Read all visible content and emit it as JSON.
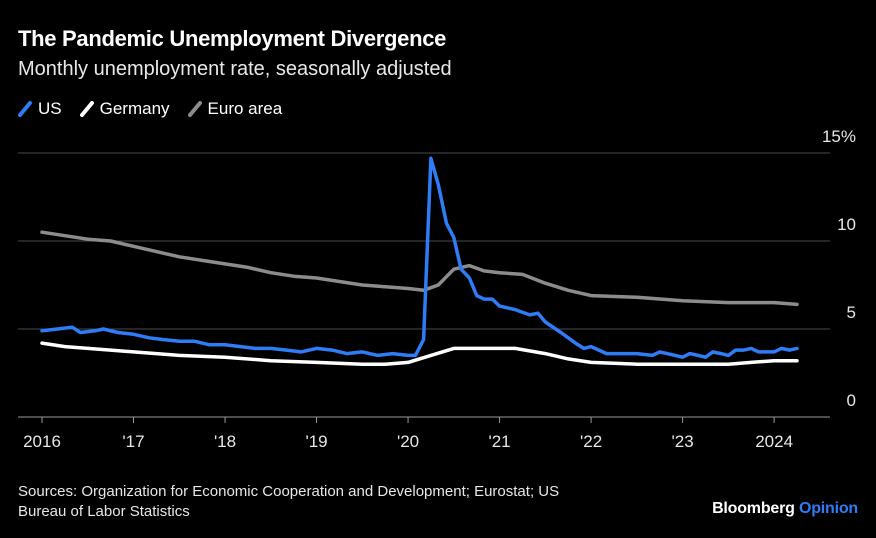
{
  "header": {
    "title": "The Pandemic Unemployment Divergence",
    "subtitle": "Monthly unemployment rate, seasonally adjusted"
  },
  "footer": {
    "source": "Sources: Organization for Economic Cooperation and Development; Eurostat; US Bureau of Labor Statistics",
    "brand_primary": "Bloomberg",
    "brand_secondary": "Opinion"
  },
  "chart_data": {
    "type": "line",
    "title": "The Pandemic Unemployment Divergence",
    "subtitle": "Monthly unemployment rate, seasonally adjusted",
    "xlabel": "",
    "ylabel": "",
    "xlim": [
      2016.0,
      2024.25
    ],
    "ylim": [
      0,
      15
    ],
    "grid": true,
    "legend_position": "top-left",
    "x_ticks": [
      {
        "value": 2016,
        "label": "2016"
      },
      {
        "value": 2017,
        "label": "'17"
      },
      {
        "value": 2018,
        "label": "'18"
      },
      {
        "value": 2019,
        "label": "'19"
      },
      {
        "value": 2020,
        "label": "'20"
      },
      {
        "value": 2021,
        "label": "'21"
      },
      {
        "value": 2022,
        "label": "'22"
      },
      {
        "value": 2023,
        "label": "'23"
      },
      {
        "value": 2024,
        "label": "2024"
      }
    ],
    "y_ticks": [
      {
        "value": 15,
        "label": "15%"
      },
      {
        "value": 10,
        "label": "10"
      },
      {
        "value": 5,
        "label": "5"
      },
      {
        "value": 0,
        "label": "0"
      }
    ],
    "series": [
      {
        "name": "US",
        "color": "#2e7cf6",
        "points": [
          [
            2016.0,
            4.9
          ],
          [
            2016.17,
            5.0
          ],
          [
            2016.33,
            5.1
          ],
          [
            2016.42,
            4.8
          ],
          [
            2016.58,
            4.9
          ],
          [
            2016.67,
            5.0
          ],
          [
            2016.83,
            4.8
          ],
          [
            2017.0,
            4.7
          ],
          [
            2017.17,
            4.5
          ],
          [
            2017.33,
            4.4
          ],
          [
            2017.5,
            4.3
          ],
          [
            2017.67,
            4.3
          ],
          [
            2017.83,
            4.1
          ],
          [
            2018.0,
            4.1
          ],
          [
            2018.17,
            4.0
          ],
          [
            2018.33,
            3.9
          ],
          [
            2018.5,
            3.9
          ],
          [
            2018.67,
            3.8
          ],
          [
            2018.83,
            3.7
          ],
          [
            2019.0,
            3.9
          ],
          [
            2019.17,
            3.8
          ],
          [
            2019.33,
            3.6
          ],
          [
            2019.5,
            3.7
          ],
          [
            2019.67,
            3.5
          ],
          [
            2019.83,
            3.6
          ],
          [
            2020.0,
            3.5
          ],
          [
            2020.08,
            3.5
          ],
          [
            2020.17,
            4.4
          ],
          [
            2020.25,
            14.7
          ],
          [
            2020.33,
            13.2
          ],
          [
            2020.42,
            11.0
          ],
          [
            2020.5,
            10.2
          ],
          [
            2020.58,
            8.4
          ],
          [
            2020.67,
            7.9
          ],
          [
            2020.75,
            6.9
          ],
          [
            2020.83,
            6.7
          ],
          [
            2020.92,
            6.7
          ],
          [
            2021.0,
            6.3
          ],
          [
            2021.17,
            6.1
          ],
          [
            2021.33,
            5.8
          ],
          [
            2021.42,
            5.9
          ],
          [
            2021.5,
            5.4
          ],
          [
            2021.67,
            4.8
          ],
          [
            2021.83,
            4.2
          ],
          [
            2021.92,
            3.9
          ],
          [
            2022.0,
            4.0
          ],
          [
            2022.17,
            3.6
          ],
          [
            2022.5,
            3.6
          ],
          [
            2022.67,
            3.5
          ],
          [
            2022.75,
            3.7
          ],
          [
            2022.83,
            3.6
          ],
          [
            2022.92,
            3.5
          ],
          [
            2023.0,
            3.4
          ],
          [
            2023.08,
            3.6
          ],
          [
            2023.17,
            3.5
          ],
          [
            2023.25,
            3.4
          ],
          [
            2023.33,
            3.7
          ],
          [
            2023.42,
            3.6
          ],
          [
            2023.5,
            3.5
          ],
          [
            2023.58,
            3.8
          ],
          [
            2023.67,
            3.8
          ],
          [
            2023.75,
            3.9
          ],
          [
            2023.83,
            3.7
          ],
          [
            2023.92,
            3.7
          ],
          [
            2024.0,
            3.7
          ],
          [
            2024.08,
            3.9
          ],
          [
            2024.17,
            3.8
          ],
          [
            2024.25,
            3.9
          ]
        ]
      },
      {
        "name": "Germany",
        "color": "#ffffff",
        "points": [
          [
            2016.0,
            4.2
          ],
          [
            2016.25,
            4.0
          ],
          [
            2016.5,
            3.9
          ],
          [
            2016.75,
            3.8
          ],
          [
            2017.0,
            3.7
          ],
          [
            2017.5,
            3.5
          ],
          [
            2018.0,
            3.4
          ],
          [
            2018.5,
            3.2
          ],
          [
            2019.0,
            3.1
          ],
          [
            2019.5,
            3.0
          ],
          [
            2019.75,
            3.0
          ],
          [
            2020.0,
            3.1
          ],
          [
            2020.25,
            3.5
          ],
          [
            2020.5,
            3.9
          ],
          [
            2020.75,
            3.9
          ],
          [
            2021.0,
            3.9
          ],
          [
            2021.17,
            3.9
          ],
          [
            2021.5,
            3.6
          ],
          [
            2021.75,
            3.3
          ],
          [
            2022.0,
            3.1
          ],
          [
            2022.5,
            3.0
          ],
          [
            2023.0,
            3.0
          ],
          [
            2023.5,
            3.0
          ],
          [
            2023.75,
            3.1
          ],
          [
            2024.0,
            3.2
          ],
          [
            2024.25,
            3.2
          ]
        ]
      },
      {
        "name": "Euro area",
        "color": "#8c8c8c",
        "points": [
          [
            2016.0,
            10.5
          ],
          [
            2016.25,
            10.3
          ],
          [
            2016.5,
            10.1
          ],
          [
            2016.75,
            10.0
          ],
          [
            2017.0,
            9.7
          ],
          [
            2017.25,
            9.4
          ],
          [
            2017.5,
            9.1
          ],
          [
            2017.75,
            8.9
          ],
          [
            2018.0,
            8.7
          ],
          [
            2018.25,
            8.5
          ],
          [
            2018.5,
            8.2
          ],
          [
            2018.75,
            8.0
          ],
          [
            2019.0,
            7.9
          ],
          [
            2019.25,
            7.7
          ],
          [
            2019.5,
            7.5
          ],
          [
            2019.75,
            7.4
          ],
          [
            2020.0,
            7.3
          ],
          [
            2020.17,
            7.2
          ],
          [
            2020.33,
            7.5
          ],
          [
            2020.5,
            8.4
          ],
          [
            2020.67,
            8.6
          ],
          [
            2020.83,
            8.3
          ],
          [
            2021.0,
            8.2
          ],
          [
            2021.25,
            8.1
          ],
          [
            2021.5,
            7.6
          ],
          [
            2021.75,
            7.2
          ],
          [
            2022.0,
            6.9
          ],
          [
            2022.5,
            6.8
          ],
          [
            2023.0,
            6.6
          ],
          [
            2023.5,
            6.5
          ],
          [
            2024.0,
            6.5
          ],
          [
            2024.25,
            6.4
          ]
        ]
      }
    ]
  }
}
